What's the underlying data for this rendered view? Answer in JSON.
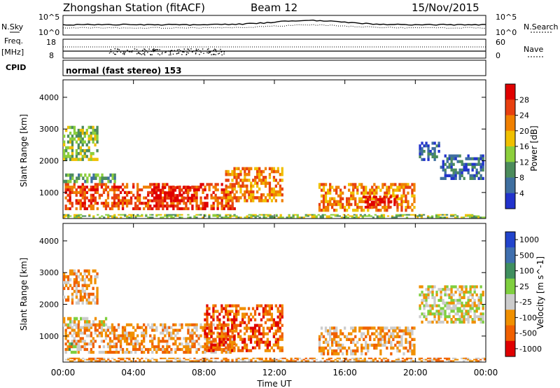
{
  "header": {
    "station": "Zhongshan Station (fitACF)",
    "beam": "Beam 12",
    "date": "15/Nov/2015"
  },
  "top_panel": {
    "left_label": "N.Sky",
    "right_label": "N.Search",
    "left_ticks": [
      "10^5",
      "10^0"
    ],
    "right_ticks": [
      "10^5",
      "10^0"
    ]
  },
  "freq_panel": {
    "left_label_1": "Freq.",
    "left_label_2": "[MHz]",
    "right_label": "Nave",
    "left_ticks": [
      "18",
      "8"
    ],
    "right_ticks": [
      "60",
      "0"
    ]
  },
  "cpid": {
    "label": "CPID",
    "value": "normal (fast stereo) 153"
  },
  "colors": {
    "power": [
      "#2233cc",
      "#3f6fa0",
      "#4c8c5c",
      "#8ccf3c",
      "#f0c000",
      "#f08000",
      "#e84010",
      "#e00000"
    ],
    "velocity": [
      "#e00000",
      "#f06000",
      "#f09000",
      "#cccccc",
      "#7fcf3f",
      "#3f8f5f",
      "#3f6faf",
      "#2244cc"
    ]
  },
  "chart_data": [
    {
      "type": "heatmap",
      "name": "power",
      "ylabel": "Slant Range [km]",
      "yticks": [
        "1000",
        "2000",
        "3000",
        "4000"
      ],
      "ylim": [
        180,
        4550
      ],
      "xlim": [
        0,
        24
      ],
      "xticks": [
        "00:00",
        "04:00",
        "08:00",
        "12:00",
        "16:00",
        "20:00",
        "00:00"
      ],
      "colorbar_label": "Power [dB]",
      "colorbar_ticks": [
        "4",
        "8",
        "12",
        "16",
        "20",
        "24",
        "28"
      ],
      "regions": [
        {
          "t0": 0.1,
          "t1": 9.8,
          "r0": 450,
          "r1": 1300,
          "level": 6
        },
        {
          "t0": 5.0,
          "t1": 7.5,
          "r0": 700,
          "r1": 1200,
          "level": 7
        },
        {
          "t0": 0.0,
          "t1": 3.0,
          "r0": 1300,
          "r1": 1600,
          "level": 2
        },
        {
          "t0": 0.0,
          "t1": 2.0,
          "r0": 2000,
          "r1": 3100,
          "level": 3
        },
        {
          "t0": 9.2,
          "t1": 12.5,
          "r0": 700,
          "r1": 1800,
          "level": 5
        },
        {
          "t0": 14.5,
          "t1": 20.0,
          "r0": 400,
          "r1": 1300,
          "level": 5
        },
        {
          "t0": 17.0,
          "t1": 19.0,
          "r0": 500,
          "r1": 900,
          "level": 7
        },
        {
          "t0": 20.2,
          "t1": 21.4,
          "r0": 2000,
          "r1": 2600,
          "level": 1
        },
        {
          "t0": 21.4,
          "t1": 23.9,
          "r0": 1400,
          "r1": 2200,
          "level": 1
        },
        {
          "t0": 0.0,
          "t1": 24.0,
          "r0": 200,
          "r1": 320,
          "level": 3
        }
      ]
    },
    {
      "type": "heatmap",
      "name": "velocity",
      "xlabel": "Time UT",
      "ylabel": "Slant Range [km]",
      "yticks": [
        "1000",
        "2000",
        "3000",
        "4000"
      ],
      "ylim": [
        180,
        4550
      ],
      "xlim": [
        0,
        24
      ],
      "xticks": [
        "00:00",
        "04:00",
        "08:00",
        "12:00",
        "16:00",
        "20:00",
        "00:00"
      ],
      "colorbar_label": "Velocity [m s^-1]",
      "colorbar_ticks": [
        "1000",
        "500",
        "100",
        "25",
        "-25",
        "-100",
        "-500",
        "-1000"
      ],
      "regions": [
        {
          "t0": 0.1,
          "t1": 9.8,
          "r0": 450,
          "r1": 1400,
          "level": 2
        },
        {
          "t0": 8.0,
          "t1": 12.5,
          "r0": 500,
          "r1": 2000,
          "level": 1
        },
        {
          "t0": 0.2,
          "t1": 1.0,
          "r0": 450,
          "r1": 800,
          "level": 4
        },
        {
          "t0": 0.0,
          "t1": 2.5,
          "r0": 1300,
          "r1": 1600,
          "level": 3
        },
        {
          "t0": 0.0,
          "t1": 2.0,
          "r0": 2000,
          "r1": 3100,
          "level": 2
        },
        {
          "t0": 14.5,
          "t1": 20.0,
          "r0": 400,
          "r1": 1300,
          "level": 2
        },
        {
          "t0": 20.2,
          "t1": 23.9,
          "r0": 1400,
          "r1": 2600,
          "level": 3
        },
        {
          "t0": 0.0,
          "t1": 24.0,
          "r0": 200,
          "r1": 320,
          "level": 2
        }
      ]
    }
  ]
}
